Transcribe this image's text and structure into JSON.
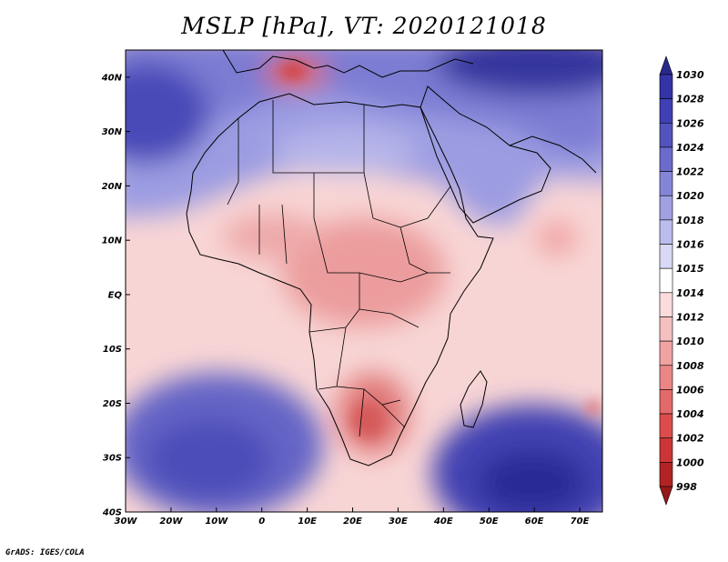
{
  "title": "MSLP [hPa], VT: 2020121018",
  "credit": "GrADS: IGES/COLA",
  "map": {
    "variable": "Mean sea level pressure",
    "units": "hPa",
    "valid_time": "2020121018",
    "lon_range": [
      -30,
      75
    ],
    "lat_range": [
      -40,
      45
    ],
    "x_ticks": [
      {
        "lon": -30,
        "label": "30W"
      },
      {
        "lon": -20,
        "label": "20W"
      },
      {
        "lon": -10,
        "label": "10W"
      },
      {
        "lon": 0,
        "label": "0"
      },
      {
        "lon": 10,
        "label": "10E"
      },
      {
        "lon": 20,
        "label": "20E"
      },
      {
        "lon": 30,
        "label": "30E"
      },
      {
        "lon": 40,
        "label": "40E"
      },
      {
        "lon": 50,
        "label": "50E"
      },
      {
        "lon": 60,
        "label": "60E"
      },
      {
        "lon": 70,
        "label": "70E"
      }
    ],
    "y_ticks": [
      {
        "lat": 40,
        "label": "40N"
      },
      {
        "lat": 30,
        "label": "30N"
      },
      {
        "lat": 20,
        "label": "20N"
      },
      {
        "lat": 10,
        "label": "10N"
      },
      {
        "lat": 0,
        "label": "EQ"
      },
      {
        "lat": -10,
        "label": "10S"
      },
      {
        "lat": -20,
        "label": "20S"
      },
      {
        "lat": -30,
        "label": "30S"
      },
      {
        "lat": -40,
        "label": "40S"
      }
    ],
    "colorbar": {
      "levels": [
        "1030",
        "1028",
        "1026",
        "1024",
        "1022",
        "1020",
        "1018",
        "1016",
        "1015",
        "1014",
        "1012",
        "1010",
        "1008",
        "1006",
        "1004",
        "1002",
        "1000",
        "998"
      ],
      "colors": [
        "#28288c",
        "#3434a6",
        "#4040b4",
        "#5353bd",
        "#6b6bcb",
        "#8585d8",
        "#a0a0e3",
        "#bcbcee",
        "#d9d9f6",
        "#ffffff",
        "#fbdcdc",
        "#f6c0c0",
        "#f0a3a3",
        "#ea8686",
        "#e46969",
        "#dc4c4c",
        "#cc3535",
        "#b22424",
        "#961818"
      ]
    },
    "features": [
      {
        "name": "High (subtropical Atlantic)",
        "lon": -29,
        "lat": 31,
        "value": 1024
      },
      {
        "name": "High (Eurasia)",
        "lon": 65,
        "lat": 43,
        "value": 1030
      },
      {
        "name": "High (South Atlantic)",
        "lon": -13,
        "lat": -30,
        "value": 1022
      },
      {
        "name": "High (southern Indian Ocean)",
        "lon": 60,
        "lat": -35,
        "value": 1028
      },
      {
        "name": "Low (Mediterranean)",
        "lon": 9,
        "lat": 42,
        "value": 1006
      },
      {
        "name": "Low (southern Africa)",
        "lon": 24,
        "lat": -24,
        "value": 1006
      },
      {
        "name": "Low (Arabian Sea)",
        "lon": 64,
        "lat": 10,
        "value": 1010
      }
    ]
  }
}
